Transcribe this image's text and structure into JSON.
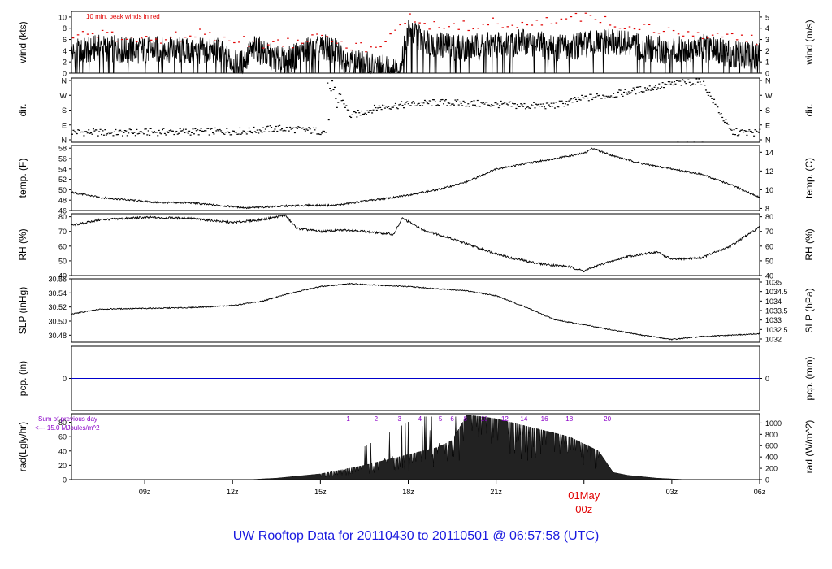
{
  "title": "UW Rooftop Data for 20110430  to  20110501 @ 06:57:58  (UTC)",
  "colors": {
    "trace": "#000000",
    "peak": "#e00000",
    "precip": "#0000cc",
    "title": "#1a1adf",
    "annot": "#8a00c8",
    "date": "#e00000"
  },
  "chart_data": {
    "type": "line",
    "x_axis": {
      "range": [
        6.5,
        30.0
      ],
      "ticks": [
        9,
        12,
        15,
        18,
        21,
        24,
        27,
        30
      ],
      "tick_labels": [
        "09z",
        "12z",
        "15z",
        "18z",
        "21z",
        "01May",
        "03z",
        "06z"
      ],
      "date_label": "01May",
      "date_sub_label": "00z"
    },
    "panels": [
      {
        "id": "wind",
        "type": "line",
        "ylabel_left": "wind (kts)",
        "ylabel_right": "wind (m/s)",
        "ylim": [
          0,
          11
        ],
        "left_ticks": [
          "0",
          "2",
          "4",
          "6",
          "8",
          "10"
        ],
        "right_ticks": [
          "0",
          "1",
          "2",
          "3",
          "4",
          "5"
        ],
        "annotation": "10 min. peak winds in red",
        "series": [
          {
            "name": "wind",
            "x": [
              6.5,
              7.5,
              8.5,
              9.5,
              10.5,
              11.5,
              12.2,
              12.8,
              13.2,
              13.8,
              14.5,
              15.3,
              16.0,
              16.5,
              17.0,
              17.4,
              17.7,
              18.0,
              19.0,
              20.0,
              21.0,
              22.0,
              23.0,
              24.0,
              25.0,
              26.0,
              27.0,
              28.0,
              29.0,
              30.0
            ],
            "values": [
              3.5,
              4.5,
              4.0,
              4.2,
              3.8,
              4.0,
              1.2,
              4.5,
              3.0,
              2.0,
              4.0,
              4.5,
              2.0,
              1.5,
              1.0,
              0.8,
              0.5,
              7.5,
              5.0,
              4.5,
              5.0,
              5.5,
              4.5,
              5.0,
              5.5,
              4.5,
              4.0,
              4.5,
              3.5,
              3.0
            ]
          },
          {
            "name": "peak",
            "x": [
              7.0,
              8.0,
              9.0,
              10.0,
              11.0,
              12.0,
              13.0,
              14.0,
              15.0,
              16.0,
              17.0,
              18.0,
              19.0,
              20.0,
              21.0,
              22.0,
              23.0,
              24.0,
              25.0,
              26.0,
              27.0,
              28.0,
              29.0,
              30.0
            ],
            "values": [
              7.0,
              6.5,
              6.0,
              6.5,
              7.0,
              6.0,
              5.5,
              5.5,
              7.5,
              5.0,
              4.0,
              10.5,
              8.0,
              8.5,
              9.0,
              8.5,
              9.5,
              10.0,
              9.0,
              8.5,
              7.0,
              7.0,
              6.5,
              6.0
            ]
          }
        ]
      },
      {
        "id": "dir",
        "type": "scatter",
        "ylabel_left": "dir.",
        "ylabel_right": "dir.",
        "ylim": [
          0,
          360
        ],
        "left_ticks": [
          "N",
          "E",
          "S",
          "W",
          "N"
        ],
        "right_ticks": [
          "N",
          "E",
          "S",
          "W",
          "N"
        ],
        "series": [
          {
            "name": "direction",
            "x": [
              6.5,
              8.0,
              9.5,
              11.0,
              12.5,
              13.5,
              14.5,
              15.3,
              15.6,
              16.0,
              17.0,
              18.0,
              19.0,
              20.0,
              21.0,
              22.0,
              23.0,
              24.0,
              25.0,
              26.0,
              27.0,
              28.0,
              29.0,
              30.0
            ],
            "values": [
              60,
              55,
              60,
              62,
              65,
              80,
              70,
              60,
              280,
              150,
              200,
              215,
              225,
              220,
              215,
              205,
              210,
              250,
              270,
              300,
              330,
              345,
              60,
              55
            ]
          }
        ]
      },
      {
        "id": "temp",
        "type": "line",
        "ylabel_left": "temp. (F)",
        "ylabel_right": "temp. (C)",
        "ylim": [
          46,
          58.5
        ],
        "left_ticks": [
          "46",
          "48",
          "50",
          "52",
          "54",
          "56",
          "58"
        ],
        "right_ticks": [
          "8",
          "10",
          "12",
          "14"
        ],
        "series": [
          {
            "name": "temp",
            "x": [
              6.5,
              7.5,
              8.5,
              9.5,
              10.5,
              11.5,
              12.5,
              13.5,
              14.5,
              15.5,
              16.5,
              17.5,
              18.0,
              19.0,
              20.0,
              21.0,
              22.0,
              23.0,
              24.0,
              24.3,
              25.0,
              26.0,
              27.0,
              28.0,
              29.0,
              30.0
            ],
            "values": [
              49.5,
              48.5,
              48.0,
              47.5,
              47.5,
              47.0,
              46.5,
              46.8,
              47.0,
              47.0,
              47.8,
              48.5,
              49.0,
              50.0,
              51.5,
              54.0,
              55.0,
              56.0,
              57.0,
              58.0,
              56.5,
              55.0,
              54.0,
              53.0,
              51.0,
              48.5
            ]
          }
        ]
      },
      {
        "id": "rh",
        "type": "line",
        "ylabel_left": "RH (%)",
        "ylabel_right": "RH (%)",
        "ylim": [
          40,
          82
        ],
        "left_ticks": [
          "40",
          "50",
          "60",
          "70",
          "80"
        ],
        "right_ticks": [
          "40",
          "50",
          "60",
          "70",
          "80"
        ],
        "series": [
          {
            "name": "rh",
            "x": [
              6.5,
              7.5,
              9.0,
              10.5,
              12.0,
              13.0,
              13.8,
              14.2,
              15.0,
              16.0,
              17.0,
              17.5,
              17.8,
              18.5,
              19.5,
              20.5,
              21.5,
              22.5,
              23.5,
              24.0,
              24.5,
              25.5,
              26.5,
              27.0,
              28.0,
              29.0,
              30.0
            ],
            "values": [
              74.0,
              78.0,
              79.5,
              79.0,
              76.0,
              78.0,
              81.0,
              72.0,
              70.0,
              71.0,
              69.0,
              68.0,
              79.0,
              71.0,
              65.0,
              58.0,
              52.0,
              48.0,
              46.0,
              43.0,
              47.0,
              53.0,
              56.0,
              51.0,
              52.0,
              60.0,
              73.0
            ]
          }
        ]
      },
      {
        "id": "slp",
        "type": "line",
        "ylabel_left": "SLP (inHg)",
        "ylabel_right": "SLP (hPa)",
        "ylim": [
          30.47,
          30.56
        ],
        "left_ticks": [
          "30.48",
          "30.50",
          "30.52",
          "30.54",
          "30.56"
        ],
        "right_ticks": [
          "1032",
          "1032.5",
          "1033",
          "1033.5",
          "1034",
          "1034.5",
          "1035"
        ],
        "series": [
          {
            "name": "slp",
            "x": [
              6.5,
              7.5,
              9.0,
              10.5,
              12.0,
              13.0,
              14.0,
              15.0,
              16.0,
              17.0,
              18.0,
              19.0,
              20.0,
              21.0,
              22.0,
              23.0,
              24.0,
              25.0,
              26.0,
              27.0,
              28.0,
              29.0,
              30.0
            ],
            "values": [
              30.51,
              30.517,
              30.518,
              30.519,
              30.522,
              30.528,
              30.54,
              30.549,
              30.553,
              30.551,
              30.549,
              30.546,
              30.543,
              30.536,
              30.52,
              30.502,
              30.495,
              30.487,
              30.48,
              30.474,
              30.478,
              30.48,
              30.482
            ]
          }
        ]
      },
      {
        "id": "pcp",
        "type": "line",
        "ylabel_left": "pcp. (in)",
        "ylabel_right": "pcp. (mm)",
        "ylim": [
          -1,
          1
        ],
        "left_ticks": [
          "0"
        ],
        "right_ticks": [
          "0"
        ],
        "series": [
          {
            "name": "pcp",
            "x": [
              6.5,
              30.0
            ],
            "values": [
              0,
              0
            ]
          }
        ]
      },
      {
        "id": "rad",
        "type": "area",
        "ylabel_left": "rad(Lgly/hr)",
        "ylabel_right": "rad (W/m^2)",
        "ylim": [
          0,
          92
        ],
        "left_ticks": [
          "0",
          "20",
          "40",
          "60",
          "80"
        ],
        "right_ticks": [
          "0",
          "200",
          "400",
          "600",
          "800",
          "1000"
        ],
        "annotations": [
          "Sum of previous day",
          "<--- 15.0 MJoules/m^2"
        ],
        "hour_labels": [
          "1",
          "2",
          "3",
          "4",
          "5",
          "6",
          "8",
          "10",
          "12",
          "14",
          "16",
          "18",
          "20"
        ],
        "hour_label_x": [
          15.95,
          16.9,
          17.7,
          18.4,
          19.1,
          19.5,
          19.95,
          20.6,
          21.3,
          21.95,
          22.65,
          23.5,
          24.8
        ],
        "series": [
          {
            "name": "radiation",
            "x": [
              12.6,
              13.0,
              13.5,
              14.0,
              14.5,
              15.0,
              15.5,
              16.0,
              16.5,
              17.0,
              17.5,
              18.0,
              18.5,
              19.0,
              19.5,
              20.0,
              20.5,
              21.0,
              21.5,
              22.0,
              22.5,
              23.0,
              23.5,
              24.0,
              24.5,
              25.0,
              25.5,
              26.0,
              26.5,
              27.0,
              27.5
            ],
            "values": [
              0,
              1,
              2,
              4,
              6,
              8,
              12,
              16,
              20,
              25,
              30,
              35,
              40,
              45,
              55,
              90,
              88,
              85,
              80,
              75,
              70,
              65,
              60,
              50,
              40,
              10,
              6,
              4,
              2,
              1,
              0
            ]
          }
        ]
      }
    ]
  }
}
